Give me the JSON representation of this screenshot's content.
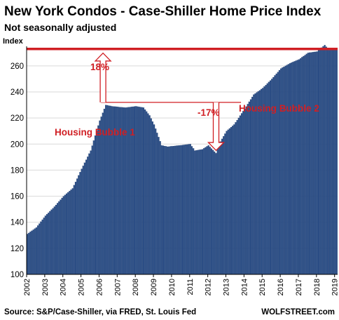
{
  "colors": {
    "bar": "#2b4e86",
    "bar_edge": "#1c3766",
    "accent": "#d01f24",
    "grid": "#d9d9d9",
    "axis": "#000000"
  },
  "chart_data": {
    "type": "bar",
    "title": "New York Condos - Case-Shiller Home Price Index",
    "subtitle": "Not seasonally adjusted",
    "ylabel": "Index",
    "ylim": [
      100,
      275
    ],
    "yticks": [
      100,
      120,
      140,
      160,
      180,
      200,
      220,
      240,
      260
    ],
    "grid": true,
    "x_start": "2002-01",
    "x_end": "2019-02",
    "xticks": [
      "2002",
      "2003",
      "2004",
      "2005",
      "2006",
      "2007",
      "2008",
      "2009",
      "2010",
      "2011",
      "2012",
      "2013",
      "2014",
      "2015",
      "2016",
      "2017",
      "2018",
      "2019"
    ],
    "series": [
      {
        "frequency": "monthly",
        "keypoints": [
          [
            "2002-01",
            131
          ],
          [
            "2002-07",
            136
          ],
          [
            "2003-01",
            145
          ],
          [
            "2003-07",
            152
          ],
          [
            "2004-01",
            160
          ],
          [
            "2004-07",
            166
          ],
          [
            "2005-01",
            181
          ],
          [
            "2005-07",
            195
          ],
          [
            "2006-01",
            218
          ],
          [
            "2006-05",
            230
          ],
          [
            "2006-09",
            229
          ],
          [
            "2007-06",
            228
          ],
          [
            "2008-01",
            229
          ],
          [
            "2008-06",
            228
          ],
          [
            "2008-10",
            222
          ],
          [
            "2009-01",
            215
          ],
          [
            "2009-06",
            199
          ],
          [
            "2009-10",
            198
          ],
          [
            "2010-06",
            199
          ],
          [
            "2011-01",
            200
          ],
          [
            "2011-04",
            195
          ],
          [
            "2011-09",
            196
          ],
          [
            "2012-01",
            199
          ],
          [
            "2012-06",
            193
          ],
          [
            "2012-09",
            202
          ],
          [
            "2013-01",
            210
          ],
          [
            "2013-06",
            215
          ],
          [
            "2014-01",
            227
          ],
          [
            "2014-07",
            238
          ],
          [
            "2015-01",
            243
          ],
          [
            "2015-07",
            250
          ],
          [
            "2016-01",
            258
          ],
          [
            "2016-07",
            262
          ],
          [
            "2017-01",
            265
          ],
          [
            "2017-07",
            270
          ],
          [
            "2018-01",
            271
          ],
          [
            "2018-06",
            276
          ],
          [
            "2018-09",
            272
          ],
          [
            "2019-02",
            273
          ]
        ]
      }
    ],
    "annotations": {
      "peak_line_value": 273,
      "bubble1_peak_value": 232,
      "bubble1_peak_date": "2006-05",
      "trough_value": 193,
      "trough_date": "2012-06",
      "gain_label": "18%",
      "drop_label": "-17%",
      "bubble1_label": "Housing Bubble 1",
      "bubble2_label": "Housing Bubble 2"
    },
    "source": "Source: S&P/Case-Shiller, via FRED,  St. Louis Fed",
    "brand": "WOLFSTREET.com"
  }
}
